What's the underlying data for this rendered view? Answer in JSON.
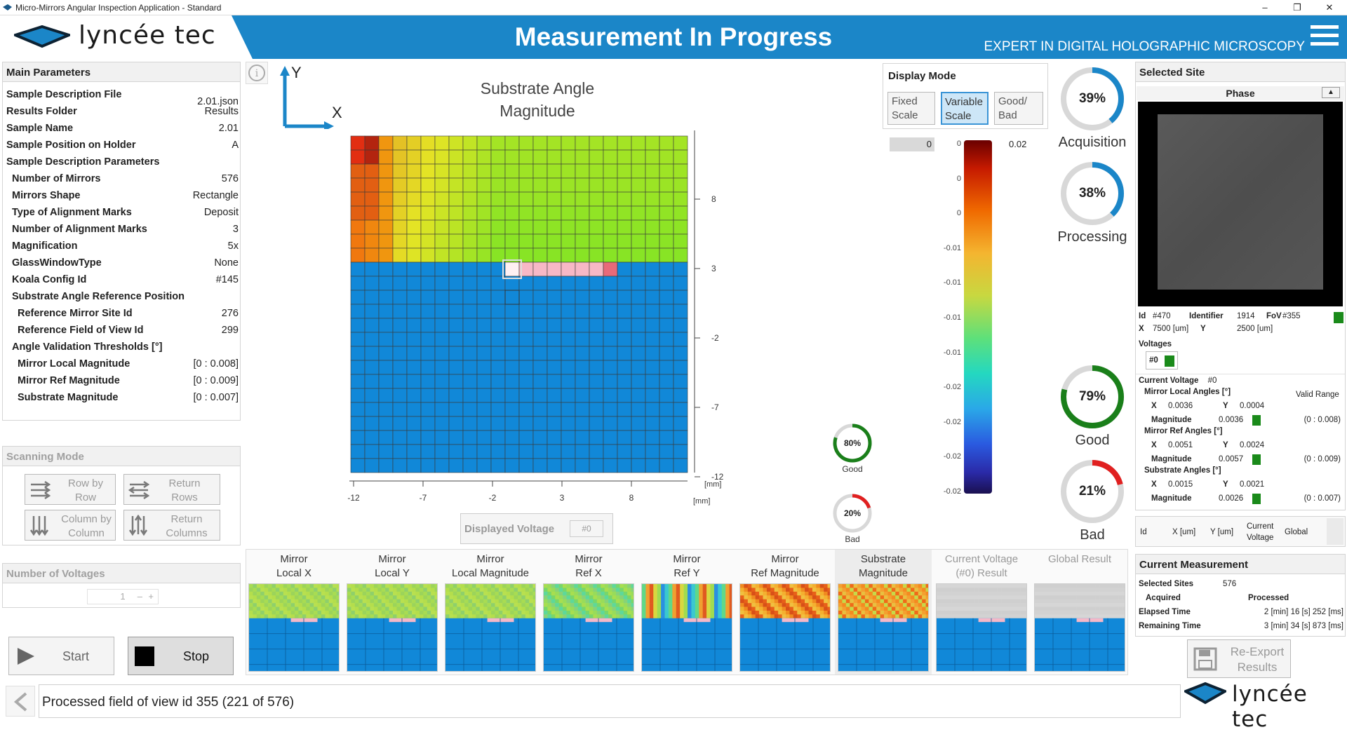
{
  "window": {
    "title": "Micro-Mirrors Angular Inspection Application - Standard",
    "minimize": "–",
    "maximize": "❐",
    "close": "✕"
  },
  "header": {
    "logo": "lyncée tec",
    "title": "Measurement In Progress",
    "subtitle": "EXPERT IN DIGITAL HOLOGRAPHIC MICROSCOPY"
  },
  "main_params": {
    "title": "Main Parameters",
    "rows": [
      {
        "k": "Sample Description File",
        "v": "2.01.json"
      },
      {
        "k": "Results Folder",
        "v": "Results"
      },
      {
        "k": "Sample Name",
        "v": "2.01"
      },
      {
        "k": "Sample Position on Holder",
        "v": "A"
      },
      {
        "k": "Sample Description Parameters",
        "v": ""
      },
      {
        "k": "Number of Mirrors",
        "v": "576"
      },
      {
        "k": "Mirrors Shape",
        "v": "Rectangle"
      },
      {
        "k": "Type of Alignment Marks",
        "v": "Deposit"
      },
      {
        "k": "Number of Alignment Marks",
        "v": "3"
      },
      {
        "k": "Magnification",
        "v": "5x"
      },
      {
        "k": "GlassWindowType",
        "v": "None"
      },
      {
        "k": "Koala Config Id",
        "v": "#145"
      },
      {
        "k": "Substrate Angle Reference Position",
        "v": ""
      },
      {
        "k": "Reference Mirror Site Id",
        "v": "276"
      },
      {
        "k": "Reference Field of View Id",
        "v": "299"
      },
      {
        "k": "Angle Validation Thresholds [°]",
        "v": ""
      },
      {
        "k": "Mirror Local Magnitude",
        "v": "[0 : 0.008]"
      },
      {
        "k": "Mirror Ref Magnitude",
        "v": "[0 : 0.009]"
      },
      {
        "k": "Substrate Magnitude",
        "v": "[0 : 0.007]"
      }
    ]
  },
  "scanning": {
    "title": "Scanning Mode",
    "row_by_row": "Row by\nRow",
    "return_rows": "Return\nRows",
    "column_by_column": "Column by\nColumn",
    "return_columns": "Return\nColumns"
  },
  "voltages_panel": {
    "title": "Number of Voltages",
    "value": "1"
  },
  "controls": {
    "start": "Start",
    "stop": "Stop"
  },
  "status": {
    "text": "Processed field of view id 355 (221 of 576)"
  },
  "map": {
    "info_icon": "info-icon",
    "axis_y": "Y",
    "axis_x": "X",
    "title_line1": "Substrate Angle",
    "title_line2": "Magnitude",
    "y_ticks": [
      "8",
      "3",
      "-2",
      "-7",
      "-12"
    ],
    "x_ticks": [
      "-12",
      "-7",
      "-2",
      "3",
      "8"
    ],
    "unit_y": "[mm]",
    "unit_x": "[mm]",
    "displayed_voltage_label": "Displayed Voltage",
    "displayed_voltage_value": "#0"
  },
  "display_mode": {
    "title": "Display Mode",
    "fixed": "Fixed\nScale",
    "variable": "Variable\nScale",
    "goodbad": "Good/\nBad",
    "selected": "Variable Scale"
  },
  "colorbar": {
    "min_field": "0",
    "max_field": "0.02",
    "labels": [
      "0",
      "0",
      "0",
      "-0.01",
      "-0.01",
      "-0.01",
      "-0.01",
      "-0.02",
      "-0.02",
      "-0.02",
      "-0.02"
    ]
  },
  "small_donuts": [
    {
      "value": 0.8,
      "text": "80%",
      "label": "Good",
      "color": "#1a7f1a"
    },
    {
      "value": 0.2,
      "text": "20%",
      "label": "Bad",
      "color": "#e02020"
    }
  ],
  "big_donuts": [
    {
      "value": 0.39,
      "text": "39%",
      "label": "Acquisition",
      "color": "#1b86c8"
    },
    {
      "value": 0.38,
      "text": "38%",
      "label": "Processing",
      "color": "#1b86c8"
    },
    {
      "value": 0.79,
      "text": "79%",
      "label": "Good",
      "color": "#1a7f1a"
    },
    {
      "value": 0.21,
      "text": "21%",
      "label": "Bad",
      "color": "#e02020"
    }
  ],
  "thumbnails": [
    {
      "label": "Mirror\nLocal X",
      "style": "green"
    },
    {
      "label": "Mirror\nLocal Y",
      "style": "green"
    },
    {
      "label": "Mirror\nLocal Magnitude",
      "style": "green"
    },
    {
      "label": "Mirror\nRef X",
      "style": "green2"
    },
    {
      "label": "Mirror\nRef Y",
      "style": "mixed"
    },
    {
      "label": "Mirror\nRef Magnitude",
      "style": "orange"
    },
    {
      "label": "Substrate\nMagnitude",
      "style": "orange2"
    },
    {
      "label": "Current Voltage\n(#0) Result",
      "style": "gray"
    },
    {
      "label": "Global Result",
      "style": "gray"
    }
  ],
  "selected_site": {
    "title": "Selected Site",
    "phase_label": "Phase",
    "id_label": "Id",
    "id": "#470",
    "identifier_label": "Identifier",
    "identifier": "1914",
    "fov_label": "FoV",
    "fov": "#355",
    "x_label": "X",
    "x": "7500 [um]",
    "y_label": "Y",
    "y": "2500 [um]",
    "voltages_label": "Voltages",
    "voltage_chip": "#0",
    "current_voltage_label": "Current Voltage",
    "current_voltage": "#0",
    "valid_range_label": "Valid Range",
    "groups": [
      {
        "title": "Mirror Local Angles [°]",
        "x": "0.0036",
        "y": "0.0004",
        "mag": "0.0036",
        "range": "(0 : 0.008)"
      },
      {
        "title": "Mirror Ref Angles [°]",
        "x": "0.0051",
        "y": "0.0024",
        "mag": "0.0057",
        "range": "(0 : 0.009)"
      },
      {
        "title": "Substrate Angles [°]",
        "x": "0.0015",
        "y": "0.0021",
        "mag": "0.0026",
        "range": "(0 : 0.007)"
      }
    ],
    "x_key": "X",
    "y_key": "Y",
    "mag_key": "Magnitude"
  },
  "sites_table": {
    "cols": [
      "Id",
      "X [um]",
      "Y [um]",
      "Current\nVoltage",
      "Global"
    ]
  },
  "current_measurement": {
    "title": "Current Measurement",
    "selected_sites_label": "Selected Sites",
    "selected_sites": "576",
    "acquired_label": "Acquired",
    "processed_label": "Processed",
    "elapsed_label": "Elapsed Time",
    "elapsed": "2 [min] 16 [s] 252 [ms]",
    "remaining_label": "Remaining Time",
    "remaining": "3 [min] 34 [s] 873 [ms]",
    "reexport": "Re-Export\nResults"
  },
  "footer_logo": "lyncée tec",
  "colors": {
    "brand": "#1b86c8",
    "good": "#1a7f1a",
    "bad": "#e02020",
    "map_blue": "#1188d8",
    "accent_blue": "#1b86c8"
  }
}
